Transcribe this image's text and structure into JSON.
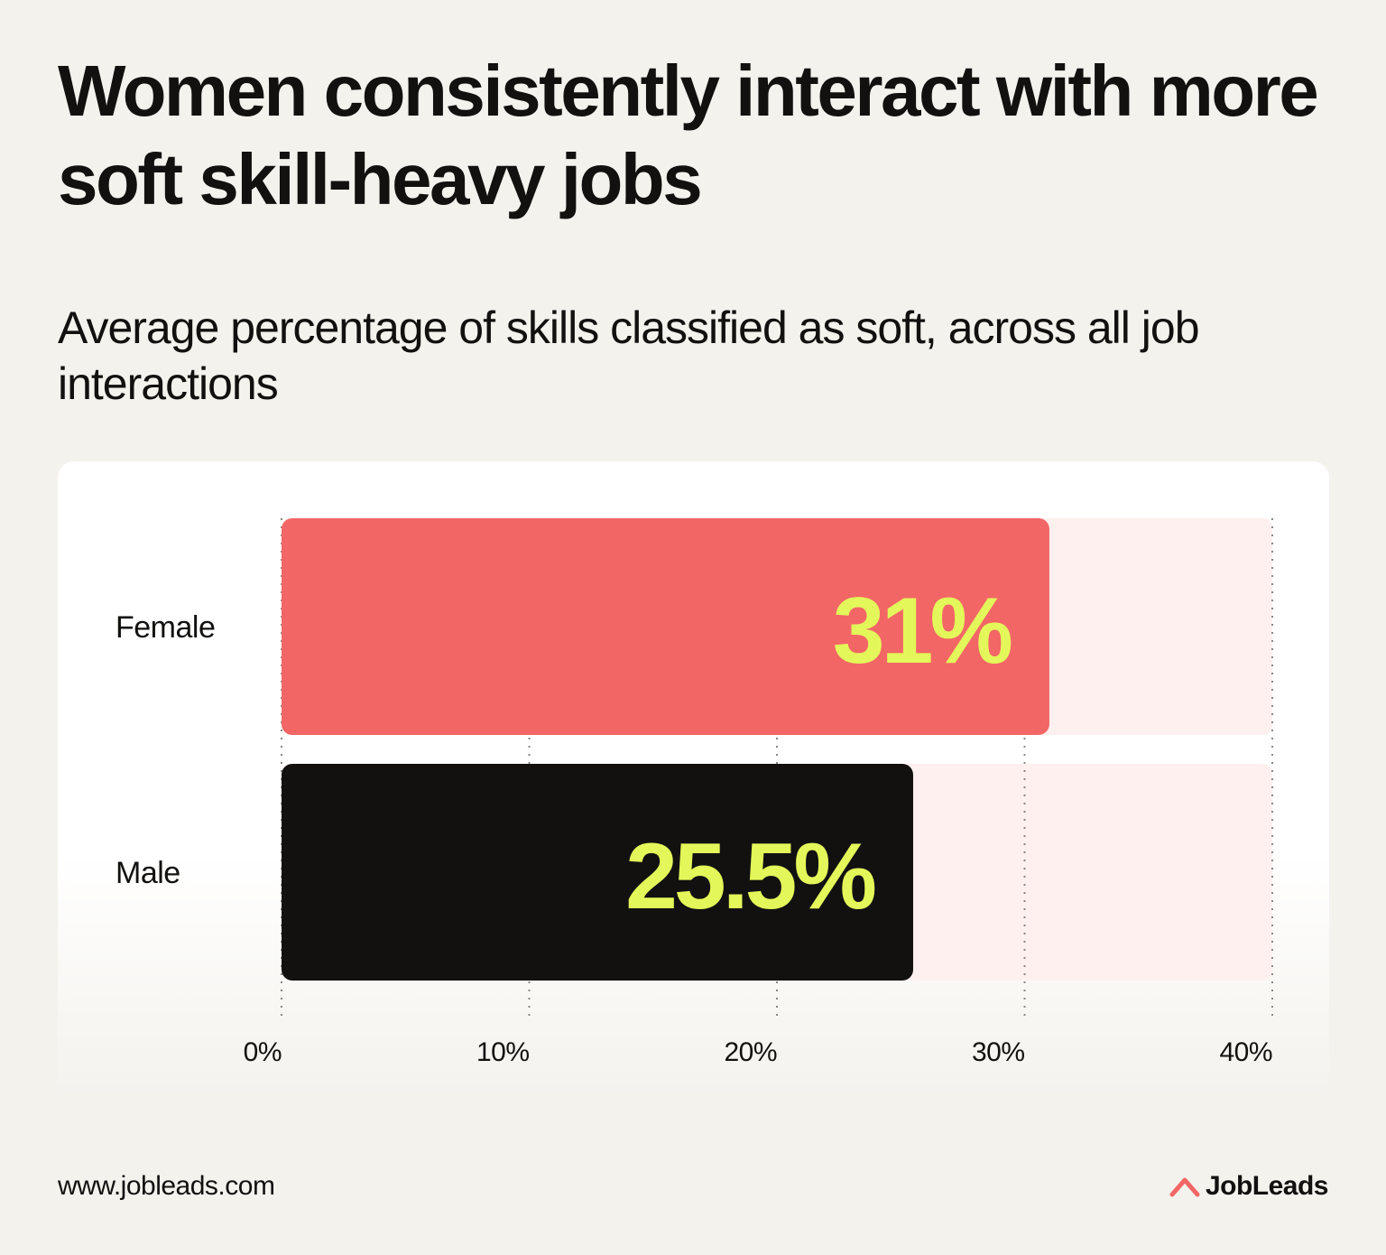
{
  "header": {
    "title": "Women consistently interact with more soft skill-heavy jobs"
  },
  "colors": {
    "background": "#f4f2ed",
    "female_bar": "#f26666",
    "male_bar": "#121110",
    "value_label": "#e4f75a",
    "track": "#fdf0ee",
    "brand_accent": "#f26666"
  },
  "chart_data": {
    "type": "bar",
    "orientation": "horizontal",
    "title": "",
    "subtitle": "Average percentage of skills classified as soft, across all job interactions",
    "categories": [
      "Female",
      "Male"
    ],
    "values": [
      31,
      25.5
    ],
    "value_labels": [
      "31%",
      "25.5%"
    ],
    "bar_colors": [
      "#f26666",
      "#121110"
    ],
    "xlim": [
      0,
      40
    ],
    "xticks": [
      0,
      10,
      20,
      30,
      40
    ],
    "xtick_labels": [
      "0%",
      "10%",
      "20%",
      "30%",
      "40%"
    ],
    "xlabel": "",
    "ylabel": "",
    "grid": "vertical dotted",
    "legend": "none"
  },
  "footer": {
    "url": "www.jobleads.com",
    "brand": "JobLeads",
    "brand_icon": "jobleads-logo-icon"
  }
}
